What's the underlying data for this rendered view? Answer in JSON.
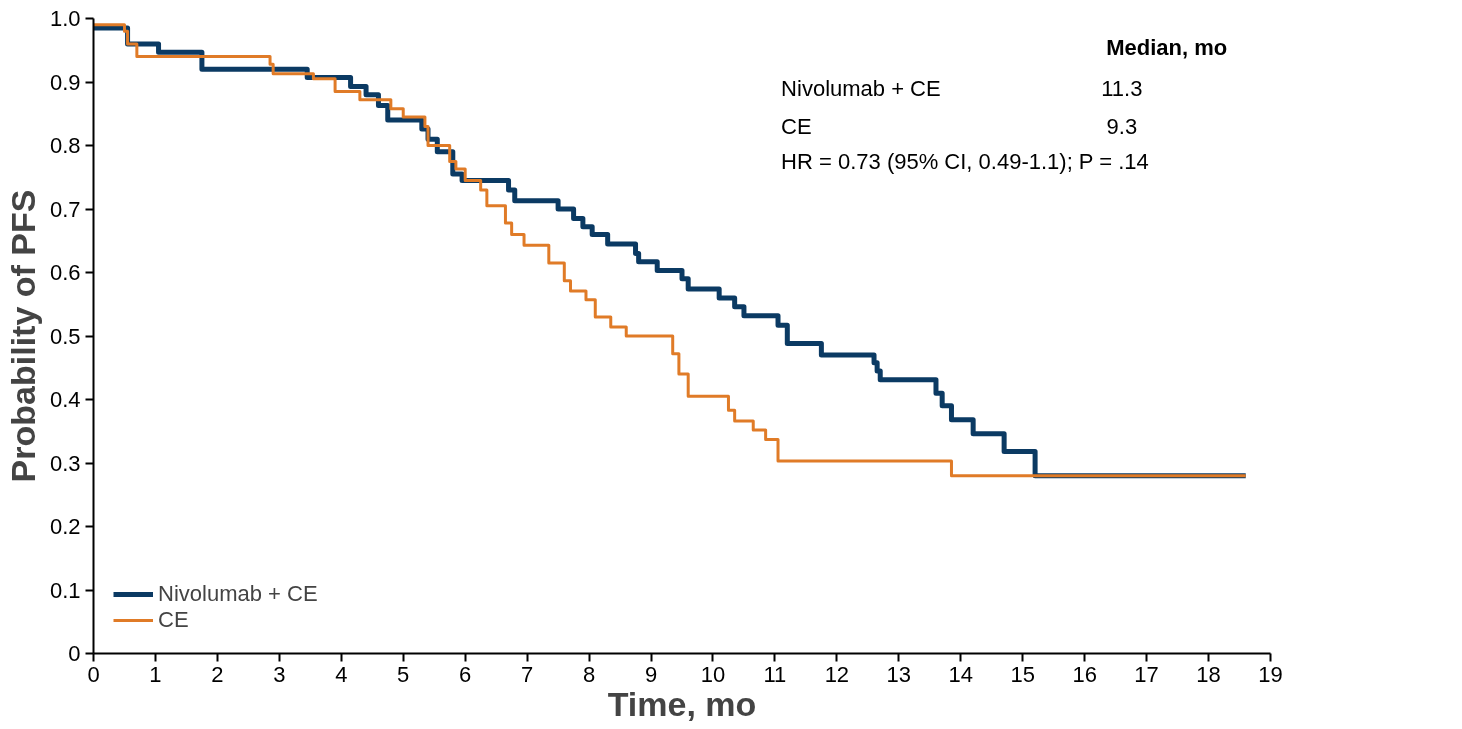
{
  "chart_data": {
    "type": "step",
    "xlabel": "Time, mo",
    "ylabel": "Probability of PFS",
    "series": [
      {
        "name": "Nivolumab + CE",
        "color": "#0b3a63",
        "x": [
          0,
          0.55,
          1.05,
          1.75,
          3.45,
          4.15,
          4.4,
          4.6,
          4.75,
          5.3,
          5.4,
          5.55,
          5.8,
          5.95,
          6.7,
          6.8,
          7.5,
          7.75,
          7.9,
          8.05,
          8.3,
          8.75,
          8.8,
          9.1,
          9.5,
          9.6,
          10.1,
          10.35,
          10.5,
          11.05,
          11.2,
          11.75,
          12.6,
          12.65,
          12.7,
          13.6,
          13.7,
          13.85,
          14.2,
          14.7,
          15.2,
          18.6
        ],
        "values": [
          0.985,
          0.96,
          0.947,
          0.92,
          0.907,
          0.893,
          0.88,
          0.863,
          0.84,
          0.826,
          0.81,
          0.79,
          0.755,
          0.745,
          0.73,
          0.713,
          0.7,
          0.685,
          0.672,
          0.66,
          0.645,
          0.63,
          0.617,
          0.603,
          0.59,
          0.574,
          0.56,
          0.546,
          0.532,
          0.517,
          0.488,
          0.47,
          0.458,
          0.445,
          0.431,
          0.41,
          0.39,
          0.368,
          0.346,
          0.318,
          0.28,
          0.28
        ]
      },
      {
        "name": "CE",
        "color": "#e07b27",
        "x": [
          0,
          0.5,
          0.55,
          0.7,
          2.85,
          2.9,
          3.55,
          3.9,
          4.3,
          4.8,
          5.0,
          5.35,
          5.4,
          5.75,
          5.85,
          6.0,
          6.25,
          6.35,
          6.65,
          6.75,
          6.95,
          7.35,
          7.6,
          7.7,
          7.95,
          8.1,
          8.35,
          8.6,
          9.35,
          9.45,
          9.6,
          10.25,
          10.35,
          10.65,
          10.85,
          11.05,
          13.85,
          18.6
        ],
        "values": [
          0.99,
          0.98,
          0.96,
          0.94,
          0.928,
          0.913,
          0.905,
          0.885,
          0.872,
          0.858,
          0.845,
          0.83,
          0.8,
          0.775,
          0.763,
          0.745,
          0.73,
          0.705,
          0.678,
          0.66,
          0.643,
          0.615,
          0.587,
          0.571,
          0.557,
          0.53,
          0.514,
          0.5,
          0.472,
          0.44,
          0.405,
          0.383,
          0.366,
          0.352,
          0.337,
          0.303,
          0.28,
          0.28
        ]
      }
    ],
    "xlim": [
      0,
      19
    ],
    "xticks": [
      0,
      1,
      2,
      3,
      4,
      5,
      6,
      7,
      8,
      9,
      10,
      11,
      12,
      13,
      14,
      15,
      16,
      17,
      18,
      19
    ],
    "ylim": [
      0,
      1
    ],
    "yticks": [
      0,
      0.1,
      0.2,
      0.3,
      0.4,
      0.5,
      0.6,
      0.7,
      0.8,
      0.9,
      {
        "value": 1,
        "label": "1.0"
      }
    ],
    "grid": false,
    "legend": "bottom left",
    "line_style": "solid",
    "annotations": [
      "Median, mo",
      "Nivolumab + CE",
      "11.3",
      "CE",
      "9.3",
      "HR = 0.73 (95% CI, 0.49-1.1); P = .14"
    ]
  }
}
